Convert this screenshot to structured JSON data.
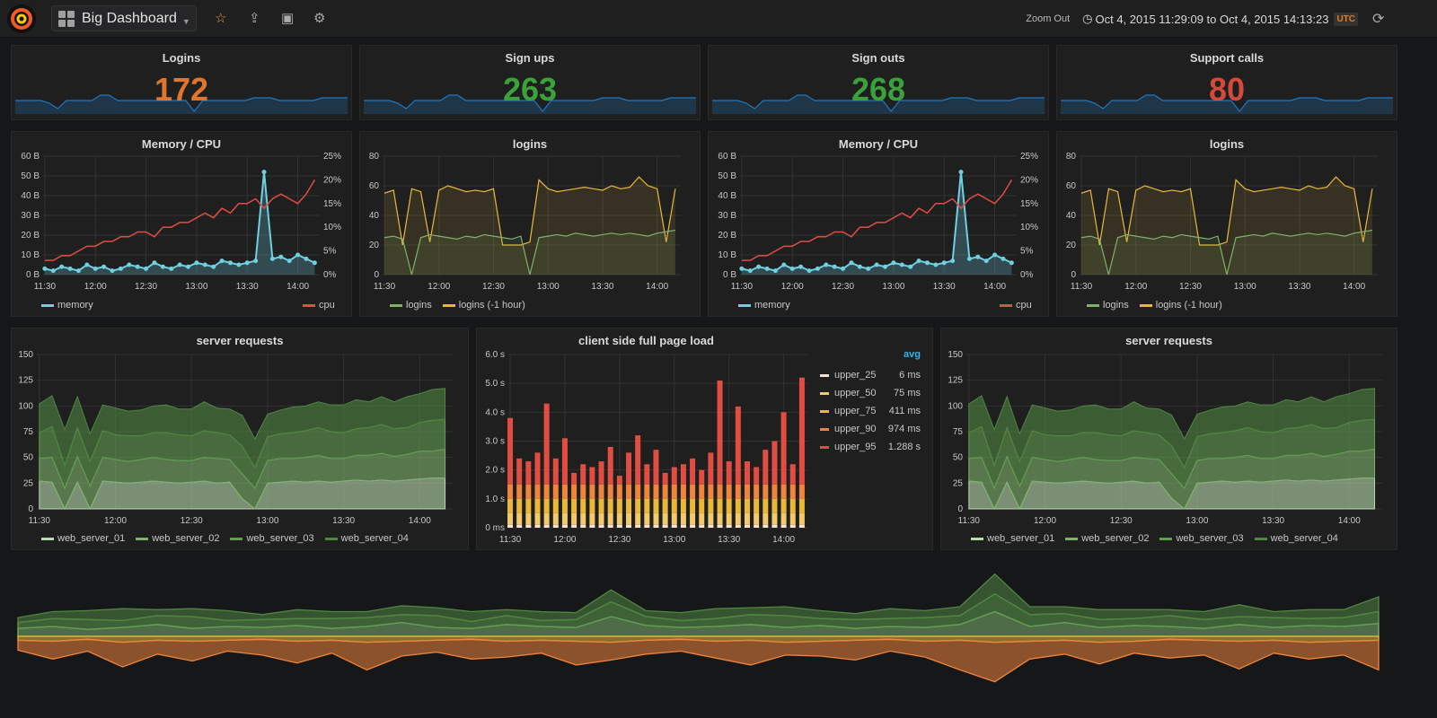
{
  "topbar": {
    "dashboard_title": "Big Dashboard",
    "zoom_out": "Zoom Out",
    "time_range": "Oct 4, 2015 11:29:09 to Oct 4, 2015 14:13:23",
    "timezone": "UTC",
    "icons": [
      "grafana-logo",
      "dashboard-grid-icon",
      "star-icon",
      "share-icon",
      "save-icon",
      "gear-icon",
      "clock-icon",
      "refresh-icon"
    ]
  },
  "colors": {
    "sparkline": "#1f78c1",
    "orange": "#e0752d",
    "green": "#3ba13b",
    "red": "#d44a3a"
  },
  "stats": [
    {
      "title": "Logins",
      "value": "172",
      "color": "#e0752d"
    },
    {
      "title": "Sign ups",
      "value": "263",
      "color": "#3ba13b"
    },
    {
      "title": "Sign outs",
      "value": "268",
      "color": "#3ba13b"
    },
    {
      "title": "Support calls",
      "value": "80",
      "color": "#d44a3a"
    }
  ],
  "sparkline": [
    5,
    5,
    5,
    5,
    4,
    2,
    5,
    5,
    5,
    5,
    7,
    7,
    5,
    5,
    5,
    5,
    5,
    5,
    5,
    5,
    5,
    1,
    5,
    5,
    5,
    5,
    5,
    5,
    6,
    6,
    6,
    5,
    5,
    5,
    5,
    5,
    6,
    6,
    6,
    6
  ],
  "chart_data": [
    {
      "id": "memcpu",
      "type": "line",
      "title": "Memory / CPU",
      "xlim": [
        "11:29",
        "14:13"
      ],
      "x": [
        "11:30",
        "11:35",
        "11:40",
        "11:45",
        "11:50",
        "11:55",
        "12:00",
        "12:05",
        "12:10",
        "12:15",
        "12:20",
        "12:25",
        "12:30",
        "12:35",
        "12:40",
        "12:45",
        "12:50",
        "12:55",
        "13:00",
        "13:05",
        "13:10",
        "13:15",
        "13:20",
        "13:25",
        "13:30",
        "13:35",
        "13:40",
        "13:45",
        "13:50",
        "13:55",
        "14:00",
        "14:05",
        "14:10"
      ],
      "xticks": [
        "11:30",
        "12:00",
        "12:30",
        "13:00",
        "13:30",
        "14:00"
      ],
      "yticks_left": [
        "0 B",
        "10 B",
        "20 B",
        "30 B",
        "40 B",
        "50 B",
        "60 B"
      ],
      "ylim_left": [
        0,
        60
      ],
      "yticks_right": [
        "0%",
        "5%",
        "10%",
        "15%",
        "20%",
        "25%"
      ],
      "ylim_right": [
        0,
        25
      ],
      "series": [
        {
          "name": "memory",
          "color": "#6ed0e0",
          "axis": "left",
          "values": [
            3,
            2,
            4,
            3,
            2,
            5,
            3,
            4,
            2,
            3,
            5,
            4,
            3,
            6,
            4,
            3,
            5,
            4,
            6,
            5,
            4,
            7,
            6,
            5,
            6,
            7,
            52,
            8,
            9,
            7,
            10,
            8,
            6
          ]
        },
        {
          "name": "cpu",
          "color": "#e24d42",
          "axis": "right",
          "values": [
            3,
            3,
            4,
            4,
            5,
            6,
            6,
            7,
            7,
            8,
            8,
            9,
            9,
            8,
            10,
            10,
            11,
            11,
            12,
            13,
            12,
            14,
            13,
            15,
            15,
            16,
            14,
            16,
            17,
            16,
            15,
            17,
            20
          ]
        }
      ]
    },
    {
      "id": "logins",
      "type": "line",
      "title": "logins",
      "xlim": [
        "11:29",
        "14:13"
      ],
      "xticks": [
        "11:30",
        "12:00",
        "12:30",
        "13:00",
        "13:30",
        "14:00"
      ],
      "yticks_left": [
        "0",
        "20",
        "40",
        "60",
        "80"
      ],
      "ylim_left": [
        0,
        80
      ],
      "series": [
        {
          "name": "logins",
          "color": "#7eb26d",
          "values": [
            25,
            26,
            24,
            0,
            25,
            27,
            26,
            25,
            24,
            26,
            25,
            27,
            26,
            25,
            24,
            26,
            0,
            25,
            26,
            27,
            26,
            28,
            27,
            26,
            27,
            28,
            27,
            28,
            27,
            26,
            28,
            29,
            30
          ]
        },
        {
          "name": "logins (-1 hour)",
          "color": "#eab839",
          "values": [
            55,
            57,
            20,
            58,
            56,
            22,
            57,
            60,
            58,
            56,
            57,
            56,
            58,
            20,
            20,
            20,
            22,
            64,
            58,
            56,
            57,
            58,
            59,
            58,
            57,
            60,
            58,
            59,
            66,
            60,
            58,
            22,
            58
          ]
        }
      ]
    },
    {
      "id": "requests",
      "type": "area",
      "stacked": true,
      "title": "server requests",
      "xlim": [
        "11:29",
        "14:13"
      ],
      "xticks": [
        "11:30",
        "12:00",
        "12:30",
        "13:00",
        "13:30",
        "14:00"
      ],
      "yticks_left": [
        "0",
        "25",
        "50",
        "75",
        "100",
        "125",
        "150"
      ],
      "ylim_left": [
        0,
        150
      ],
      "series": [
        {
          "name": "web_server_01",
          "color": "#b7dbab",
          "values": [
            27,
            26,
            0,
            26,
            0,
            27,
            26,
            25,
            26,
            27,
            26,
            25,
            26,
            27,
            25,
            26,
            10,
            0,
            25,
            26,
            27,
            26,
            27,
            26,
            27,
            28,
            27,
            28,
            27,
            28,
            29,
            30,
            30
          ]
        },
        {
          "name": "web_server_02",
          "color": "#7eb26d",
          "values": [
            22,
            24,
            20,
            25,
            22,
            23,
            22,
            21,
            22,
            23,
            22,
            22,
            21,
            23,
            24,
            22,
            24,
            20,
            22,
            23,
            22,
            24,
            25,
            23,
            22,
            24,
            25,
            26,
            24,
            25,
            27,
            26,
            28
          ]
        },
        {
          "name": "web_server_03",
          "color": "#629e51",
          "values": [
            25,
            30,
            22,
            28,
            24,
            26,
            24,
            25,
            23,
            24,
            26,
            25,
            24,
            26,
            25,
            24,
            27,
            20,
            23,
            24,
            25,
            26,
            27,
            26,
            25,
            26,
            27,
            28,
            27,
            26,
            28,
            30,
            29
          ]
        },
        {
          "name": "web_server_04",
          "color": "#508642",
          "values": [
            28,
            30,
            35,
            30,
            27,
            25,
            26,
            24,
            25,
            26,
            27,
            25,
            26,
            28,
            24,
            25,
            30,
            28,
            22,
            23,
            25,
            24,
            25,
            26,
            27,
            28,
            25,
            27,
            26,
            30,
            28,
            30,
            30
          ]
        }
      ]
    },
    {
      "id": "pageload",
      "type": "bar",
      "stacked": true,
      "title": "client side full page load",
      "xlim": [
        "11:29",
        "14:13"
      ],
      "xticks": [
        "11:30",
        "12:00",
        "12:30",
        "13:00",
        "13:30",
        "14:00"
      ],
      "yticks_left": [
        "0 ms",
        "1.0 s",
        "2.0 s",
        "3.0 s",
        "4.0 s",
        "5.0 s",
        "6.0 s"
      ],
      "ylim_left": [
        0,
        6
      ],
      "legend_header": "avg",
      "series": [
        {
          "name": "upper_25",
          "color": "#f9e2d2",
          "avg": "6 ms",
          "values": [
            0.1,
            0.1,
            0.1,
            0.1,
            0.1,
            0.1,
            0.1,
            0.1,
            0.1,
            0.1,
            0.1,
            0.1,
            0.1,
            0.1,
            0.1,
            0.1,
            0.1,
            0.1,
            0.1,
            0.1,
            0.1,
            0.1,
            0.1,
            0.1,
            0.1,
            0.1,
            0.1,
            0.1,
            0.1,
            0.1,
            0.1,
            0.1,
            0.1
          ]
        },
        {
          "name": "upper_50",
          "color": "#f2c96d",
          "avg": "75 ms",
          "values": [
            0.4,
            0.4,
            0.4,
            0.4,
            0.4,
            0.4,
            0.4,
            0.4,
            0.4,
            0.4,
            0.4,
            0.4,
            0.4,
            0.4,
            0.4,
            0.4,
            0.4,
            0.4,
            0.4,
            0.4,
            0.4,
            0.4,
            0.4,
            0.4,
            0.4,
            0.4,
            0.4,
            0.4,
            0.4,
            0.4,
            0.4,
            0.4,
            0.4
          ]
        },
        {
          "name": "upper_75",
          "color": "#eab839",
          "avg": "411 ms",
          "values": [
            0.5,
            0.5,
            0.5,
            0.5,
            0.5,
            0.5,
            0.5,
            0.5,
            0.5,
            0.5,
            0.5,
            0.5,
            0.5,
            0.5,
            0.5,
            0.5,
            0.5,
            0.5,
            0.5,
            0.5,
            0.5,
            0.5,
            0.5,
            0.5,
            0.5,
            0.5,
            0.5,
            0.5,
            0.5,
            0.5,
            0.5,
            0.5,
            0.5
          ]
        },
        {
          "name": "upper_90",
          "color": "#ef843c",
          "avg": "974 ms",
          "values": [
            0.5,
            0.5,
            0.5,
            0.5,
            0.5,
            0.5,
            0.5,
            0.5,
            0.5,
            0.5,
            0.5,
            0.5,
            0.5,
            0.5,
            0.5,
            0.5,
            0.5,
            0.5,
            0.5,
            0.5,
            0.5,
            0.5,
            0.5,
            0.5,
            0.5,
            0.5,
            0.5,
            0.5,
            0.5,
            0.5,
            0.5,
            0.5,
            0.5
          ]
        },
        {
          "name": "upper_95",
          "color": "#e24d42",
          "avg": "1.288 s",
          "values": [
            2.3,
            0.9,
            0.8,
            1.1,
            2.8,
            0.9,
            1.6,
            0.4,
            0.7,
            0.6,
            0.8,
            1.3,
            0.3,
            1.1,
            1.7,
            0.7,
            1.2,
            0.4,
            0.6,
            0.7,
            0.9,
            0.5,
            1.1,
            3.6,
            0.8,
            2.7,
            0.8,
            0.6,
            1.2,
            1.5,
            2.5,
            0.7,
            3.7
          ]
        }
      ]
    },
    {
      "id": "bottom",
      "type": "area",
      "stacked": true,
      "series": [
        {
          "color": "#7eb26d",
          "direction": "up",
          "values": [
            8,
            10,
            7,
            9,
            12,
            8,
            10,
            9,
            11,
            8,
            10,
            14,
            9,
            8,
            12,
            10,
            9,
            20,
            11,
            9,
            10,
            12,
            9,
            11,
            8,
            10,
            9,
            12,
            25,
            10,
            14,
            9,
            11,
            10,
            8,
            12,
            9,
            11,
            10,
            13
          ]
        },
        {
          "color": "#629e51",
          "direction": "up",
          "values": [
            6,
            8,
            10,
            7,
            9,
            12,
            6,
            8,
            7,
            10,
            9,
            8,
            12,
            7,
            9,
            6,
            8,
            15,
            9,
            7,
            8,
            10,
            12,
            7,
            9,
            8,
            10,
            9,
            18,
            12,
            9,
            8,
            7,
            11,
            9,
            8,
            10,
            7,
            9,
            12
          ]
        },
        {
          "color": "#508642",
          "direction": "up",
          "values": [
            5,
            7,
            9,
            12,
            6,
            8,
            10,
            5,
            9,
            7,
            6,
            9,
            8,
            10,
            6,
            9,
            7,
            12,
            6,
            8,
            10,
            7,
            9,
            8,
            6,
            10,
            7,
            9,
            20,
            8,
            7,
            10,
            9,
            6,
            8,
            12,
            6,
            9,
            8,
            15
          ]
        },
        {
          "color": "#eab839",
          "direction": "down",
          "values": [
            4,
            5,
            3,
            6,
            4,
            5,
            4,
            3,
            5,
            4,
            6,
            5,
            4,
            3,
            5,
            4,
            5,
            6,
            4,
            3,
            5,
            4,
            6,
            5,
            4,
            3,
            5,
            4,
            6,
            5,
            4,
            6,
            5,
            3,
            4,
            5,
            4,
            6,
            5,
            4
          ]
        },
        {
          "color": "#ef843c",
          "direction": "down",
          "values": [
            10,
            18,
            12,
            25,
            14,
            20,
            11,
            16,
            22,
            13,
            28,
            15,
            12,
            20,
            16,
            13,
            24,
            18,
            14,
            12,
            17,
            25,
            13,
            15,
            20,
            12,
            16,
            30,
            40,
            18,
            14,
            22,
            12,
            19,
            15,
            28,
            13,
            17,
            14,
            30
          ]
        }
      ]
    }
  ]
}
